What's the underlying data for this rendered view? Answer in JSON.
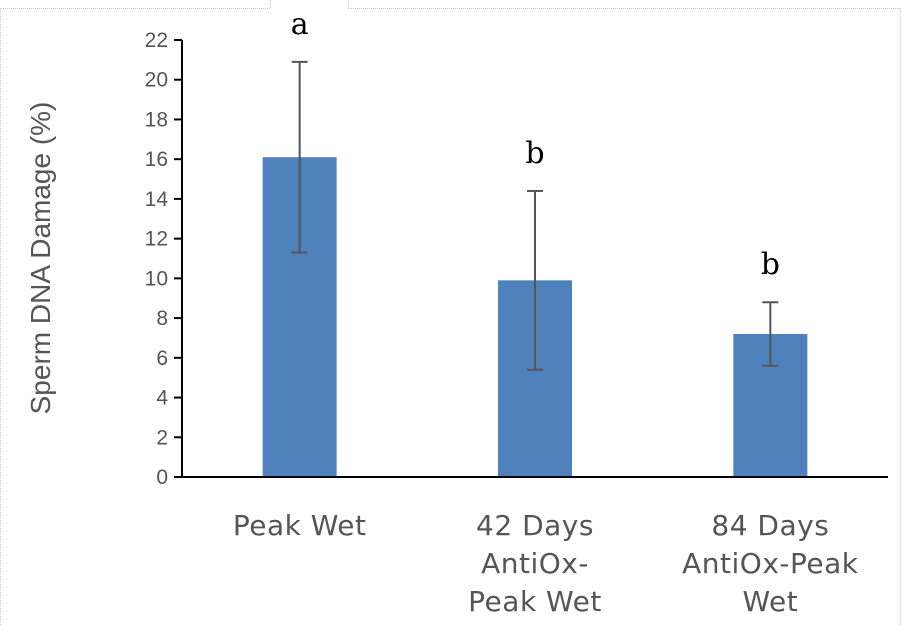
{
  "chart_data": {
    "type": "bar",
    "title": "",
    "xlabel": "",
    "ylabel": "Sperm DNA Damage (%)",
    "ylim": [
      0,
      22
    ],
    "yticks": [
      0,
      2,
      4,
      6,
      8,
      10,
      12,
      14,
      16,
      18,
      20,
      22
    ],
    "grid": false,
    "legend": "none",
    "bar_color": "#4f81bd",
    "categories": [
      [
        "Peak Wet"
      ],
      [
        "42 Days",
        "AntiOx-",
        "Peak Wet"
      ],
      [
        "84 Days",
        "AntiOx-Peak",
        "Wet"
      ]
    ],
    "values": [
      16.1,
      9.9,
      7.2
    ],
    "error_low": [
      11.3,
      5.4,
      5.6
    ],
    "error_high": [
      20.9,
      14.4,
      8.8
    ],
    "significance_labels": [
      "a",
      "b",
      "b"
    ]
  }
}
